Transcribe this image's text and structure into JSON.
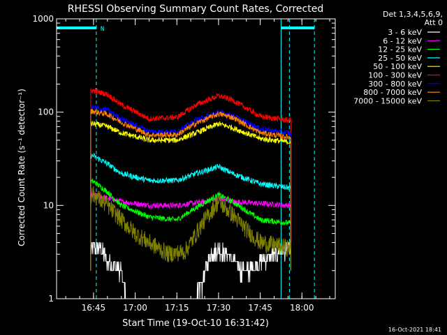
{
  "chart_data": {
    "type": "line",
    "title": "RHESSI Observing Summary Count Rates, Corrected",
    "xlabel": "Start Time (19-Oct-10 16:31:42)",
    "ylabel": "Corrected Count Rate (s⁻¹ detector⁻¹)",
    "y_scale": "log",
    "ylim": [
      1,
      1000
    ],
    "xlim": [
      "16:31:42",
      "18:12:00"
    ],
    "x_ticks": [
      "16:45",
      "17:00",
      "17:15",
      "17:30",
      "17:45",
      "18:00"
    ],
    "y_ticks": [
      "1",
      "10",
      "100",
      "1000"
    ],
    "legend_header": [
      "Det 1,3,4,5,6,9,",
      "Att 0"
    ],
    "legend_position": "right",
    "series": [
      {
        "name": "3 - 6 keV",
        "color": "#ffffff",
        "x": [
          "16:45:00",
          "16:47:00",
          "16:49:00",
          "16:50:00",
          "16:55:00",
          "16:57:00",
          "17:10:00",
          "17:22:00",
          "17:24:00",
          "17:27:00",
          "17:30:00",
          "17:33:00",
          "17:36:00",
          "17:38:00",
          "17:40:00",
          "17:50:00",
          "17:55:00"
        ],
        "y": [
          3.5,
          3.5,
          3.0,
          2.5,
          2.0,
          1.0,
          1.0,
          1.0,
          1.5,
          3.0,
          3.5,
          3.0,
          2.5,
          2.0,
          2.0,
          3.0,
          3.5
        ]
      },
      {
        "name": "6 - 12 keV",
        "color": "#ff00ff",
        "x": [
          "16:45:00",
          "16:50:00",
          "16:55:00",
          "17:05:00",
          "17:15:00",
          "17:25:00",
          "17:30:00",
          "17:35:00",
          "17:45:00",
          "17:55:00"
        ],
        "y": [
          13,
          12,
          11,
          10,
          10,
          11,
          12,
          11,
          10.5,
          10
        ]
      },
      {
        "name": "12 - 25 keV",
        "color": "#00ff00",
        "x": [
          "16:45:00",
          "16:50:00",
          "16:55:00",
          "17:05:00",
          "17:15:00",
          "17:22:00",
          "17:30:00",
          "17:35:00",
          "17:45:00",
          "17:55:00"
        ],
        "y": [
          18,
          14,
          10,
          7.5,
          7,
          9.5,
          13,
          11,
          7,
          6.5
        ]
      },
      {
        "name": "25 - 50 keV",
        "color": "#00ffff",
        "x": [
          "16:45:00",
          "16:50:00",
          "16:55:00",
          "17:05:00",
          "17:15:00",
          "17:22:00",
          "17:30:00",
          "17:35:00",
          "17:45:00",
          "17:55:00"
        ],
        "y": [
          34,
          28,
          22,
          18.5,
          18.5,
          22,
          26,
          22,
          17,
          15.5
        ]
      },
      {
        "name": "50 - 100 keV",
        "color": "#ffff00",
        "x": [
          "16:45:00",
          "16:50:00",
          "16:55:00",
          "17:05:00",
          "17:15:00",
          "17:22:00",
          "17:30:00",
          "17:35:00",
          "17:45:00",
          "17:55:00"
        ],
        "y": [
          75,
          70,
          60,
          50,
          50,
          60,
          75,
          68,
          52,
          48
        ]
      },
      {
        "name": "100 - 300 keV",
        "color": "#ff0000",
        "x": [
          "16:45:00",
          "16:50:00",
          "16:55:00",
          "17:05:00",
          "17:15:00",
          "17:22:00",
          "17:30:00",
          "17:35:00",
          "17:45:00",
          "17:55:00"
        ],
        "y": [
          170,
          155,
          120,
          85,
          88,
          120,
          150,
          135,
          90,
          82
        ]
      },
      {
        "name": "300 - 800 keV",
        "color": "#0000ff",
        "x": [
          "16:45:00",
          "16:50:00",
          "16:55:00",
          "17:05:00",
          "17:15:00",
          "17:22:00",
          "17:30:00",
          "17:35:00",
          "17:45:00",
          "17:55:00"
        ],
        "y": [
          112,
          105,
          85,
          62,
          62,
          82,
          100,
          92,
          66,
          60
        ]
      },
      {
        "name": "800 - 7000 keV",
        "color": "#ff8000",
        "x": [
          "16:45:00",
          "16:50:00",
          "16:55:00",
          "17:05:00",
          "17:15:00",
          "17:22:00",
          "17:30:00",
          "17:35:00",
          "17:45:00",
          "17:55:00"
        ],
        "y": [
          102,
          95,
          78,
          57,
          57,
          76,
          96,
          88,
          60,
          54
        ]
      },
      {
        "name": "7000 - 15000 keV",
        "color": "#808000",
        "x": [
          "16:45:00",
          "16:50:00",
          "16:55:00",
          "17:00:00",
          "17:05:00",
          "17:12:00",
          "17:18:00",
          "17:25:00",
          "17:30:00",
          "17:35:00",
          "17:40:00",
          "17:45:00",
          "17:55:00"
        ],
        "y": [
          13,
          10,
          7,
          5,
          4,
          3,
          3.2,
          7,
          11,
          8,
          5.5,
          4,
          3.5
        ]
      }
    ],
    "annotations": {
      "N_label": "N",
      "cyan_bars": [
        {
          "x": [
            "16:31:42",
            "16:46:00"
          ],
          "y": 800
        },
        {
          "x": [
            "17:52:30",
            "18:04:30"
          ],
          "y": 800
        }
      ],
      "vertical_solid": [
        "16:31:42",
        "17:52:30"
      ],
      "vertical_dashed": [
        "16:46:00",
        "17:55:30",
        "18:04:30"
      ],
      "data_extent_lines": [
        "16:44:00",
        "17:56:00"
      ]
    }
  },
  "footer": {
    "timestamp": "16-Oct-2021 18:41"
  }
}
